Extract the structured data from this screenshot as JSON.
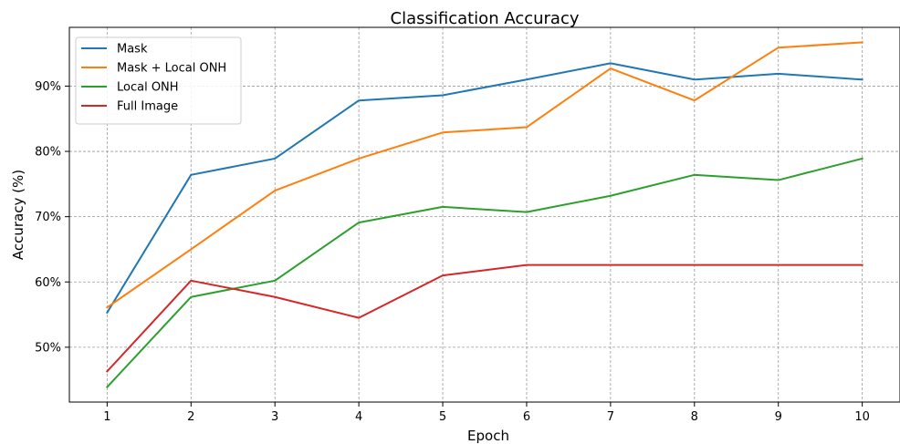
{
  "chart_data": {
    "type": "line",
    "title": "Classification Accuracy",
    "xlabel": "Epoch",
    "ylabel": "Accuracy (%)",
    "x": [
      1,
      2,
      3,
      4,
      5,
      6,
      7,
      8,
      9,
      10
    ],
    "xticks": [
      "1",
      "2",
      "3",
      "4",
      "5",
      "6",
      "7",
      "8",
      "9",
      "10"
    ],
    "yticks": [
      50,
      60,
      70,
      80,
      90
    ],
    "ytick_labels": [
      "50%",
      "60%",
      "70%",
      "80%",
      "90%"
    ],
    "xlim": [
      0.55,
      10.45
    ],
    "ylim": [
      41.6,
      99.0
    ],
    "grid": true,
    "legend_position": "top-left",
    "series": [
      {
        "name": "Mask",
        "color": "#1f77b4",
        "values": [
          55.3,
          76.4,
          78.9,
          87.8,
          88.6,
          91.0,
          93.5,
          91.0,
          91.9,
          91.0
        ]
      },
      {
        "name": "Mask + Local ONH",
        "color": "#ff7f0e",
        "values": [
          56.1,
          65.0,
          74.0,
          78.9,
          82.9,
          83.7,
          92.7,
          87.8,
          95.9,
          96.7
        ]
      },
      {
        "name": "Local ONH",
        "color": "#2ca02c",
        "values": [
          43.9,
          57.7,
          60.2,
          69.1,
          71.5,
          70.7,
          73.2,
          76.4,
          75.6,
          78.9
        ]
      },
      {
        "name": "Full Image",
        "color": "#d62728",
        "values": [
          46.3,
          60.2,
          57.7,
          54.5,
          61.0,
          62.6,
          62.6,
          62.6,
          62.6,
          62.6
        ]
      }
    ]
  }
}
